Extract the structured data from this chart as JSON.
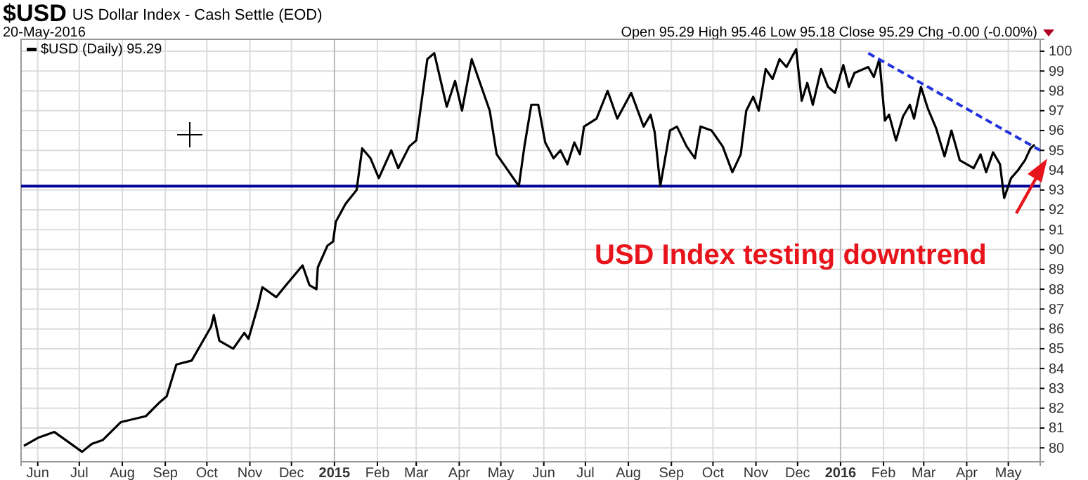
{
  "chart_data": {
    "type": "line",
    "title": "$USD",
    "subtitle": "US Dollar Index - Cash Settle (EOD)",
    "annotations": [
      "20-May-2016",
      "Open 95.29  High 95.46  Low 95.18  Close 95.29  Chg -0.00 (-0.00%)",
      "USD Index testing downtrend"
    ],
    "xlim": [
      "2014-05-20",
      "2016-05-24"
    ],
    "ylim": [
      79.3,
      100.6
    ],
    "yticks": [
      80,
      81,
      82,
      83,
      84,
      85,
      86,
      87,
      88,
      89,
      90,
      91,
      92,
      93,
      94,
      95,
      96,
      97,
      98,
      99,
      100
    ],
    "xticks": [
      {
        "value": "2014-06-01",
        "label": "Jun"
      },
      {
        "value": "2014-07-01",
        "label": "Jul"
      },
      {
        "value": "2014-08-01",
        "label": "Aug"
      },
      {
        "value": "2014-09-01",
        "label": "Sep"
      },
      {
        "value": "2014-10-01",
        "label": "Oct"
      },
      {
        "value": "2014-11-01",
        "label": "Nov"
      },
      {
        "value": "2014-12-01",
        "label": "Dec"
      },
      {
        "value": "2015-01-01",
        "label": "2015"
      },
      {
        "value": "2015-02-01",
        "label": "Feb"
      },
      {
        "value": "2015-03-01",
        "label": "Mar"
      },
      {
        "value": "2015-04-01",
        "label": "Apr"
      },
      {
        "value": "2015-05-01",
        "label": "May"
      },
      {
        "value": "2015-06-01",
        "label": "Jun"
      },
      {
        "value": "2015-07-01",
        "label": "Jul"
      },
      {
        "value": "2015-08-01",
        "label": "Aug"
      },
      {
        "value": "2015-09-01",
        "label": "Sep"
      },
      {
        "value": "2015-10-01",
        "label": "Oct"
      },
      {
        "value": "2015-11-01",
        "label": "Nov"
      },
      {
        "value": "2015-12-01",
        "label": "Dec"
      },
      {
        "value": "2016-01-01",
        "label": "2016"
      },
      {
        "value": "2016-02-01",
        "label": "Feb"
      },
      {
        "value": "2016-03-01",
        "label": "Mar"
      },
      {
        "value": "2016-04-01",
        "label": "Apr"
      },
      {
        "value": "2016-05-01",
        "label": "May"
      }
    ],
    "grid": true,
    "legend": "top left",
    "ref_lines": [
      {
        "axis": "y",
        "value": 93.2,
        "color": "#000099"
      }
    ],
    "series": [
      {
        "name": "$USD (Daily) 95.29",
        "color": "#000000",
        "line_style": "solid",
        "x": [
          "2014-05-22",
          "2014-06-01",
          "2014-06-13",
          "2014-06-21",
          "2014-07-03",
          "2014-07-10",
          "2014-07-18",
          "2014-07-31",
          "2014-08-18",
          "2014-08-28",
          "2014-09-02",
          "2014-09-09",
          "2014-09-20",
          "2014-10-04",
          "2014-10-06",
          "2014-10-10",
          "2014-10-20",
          "2014-10-28",
          "2014-10-31",
          "2014-11-07",
          "2014-11-10",
          "2014-11-20",
          "2014-11-27",
          "2014-12-09",
          "2014-12-14",
          "2014-12-19",
          "2014-12-20",
          "2014-12-27",
          "2014-12-31",
          "2015-01-02",
          "2015-01-09",
          "2015-01-17",
          "2015-01-21",
          "2015-01-27",
          "2015-02-02",
          "2015-02-11",
          "2015-02-16",
          "2015-02-24",
          "2015-03-01",
          "2015-03-09",
          "2015-03-14",
          "2015-03-23",
          "2015-03-29",
          "2015-04-03",
          "2015-04-10",
          "2015-04-18",
          "2015-04-23",
          "2015-04-28",
          "2015-05-05",
          "2015-05-14",
          "2015-05-18",
          "2015-05-23",
          "2015-05-28",
          "2015-06-02",
          "2015-06-08",
          "2015-06-13",
          "2015-06-18",
          "2015-06-23",
          "2015-06-27",
          "2015-06-30",
          "2015-07-09",
          "2015-07-17",
          "2015-07-24",
          "2015-08-03",
          "2015-08-12",
          "2015-08-17",
          "2015-08-20",
          "2015-08-24",
          "2015-08-31",
          "2015-09-05",
          "2015-09-12",
          "2015-09-18",
          "2015-09-22",
          "2015-09-30",
          "2015-10-08",
          "2015-10-15",
          "2015-10-21",
          "2015-10-25",
          "2015-10-30",
          "2015-11-03",
          "2015-11-08",
          "2015-11-13",
          "2015-11-18",
          "2015-11-23",
          "2015-11-30",
          "2015-12-04",
          "2015-12-08",
          "2015-12-12",
          "2015-12-18",
          "2015-12-23",
          "2015-12-28",
          "2016-01-03",
          "2016-01-07",
          "2016-01-11",
          "2016-01-21",
          "2016-01-25",
          "2016-01-29",
          "2016-02-02",
          "2016-02-05",
          "2016-02-10",
          "2016-02-15",
          "2016-02-20",
          "2016-02-23",
          "2016-02-28",
          "2016-03-04",
          "2016-03-10",
          "2016-03-16",
          "2016-03-21",
          "2016-03-27",
          "2016-04-06",
          "2016-04-11",
          "2016-04-15",
          "2016-04-20",
          "2016-04-25",
          "2016-04-28",
          "2016-05-03",
          "2016-05-08",
          "2016-05-13",
          "2016-05-17",
          "2016-05-20"
        ],
        "values": [
          80.1,
          80.5,
          80.8,
          80.4,
          79.8,
          80.2,
          80.4,
          81.3,
          81.6,
          82.3,
          82.6,
          84.2,
          84.4,
          86.1,
          86.7,
          85.4,
          85.0,
          85.8,
          85.5,
          87.2,
          88.1,
          87.6,
          88.2,
          89.2,
          88.2,
          88.0,
          89.1,
          90.2,
          90.4,
          91.4,
          92.3,
          93.0,
          95.1,
          94.6,
          93.6,
          95.0,
          94.1,
          95.2,
          95.5,
          99.6,
          99.9,
          97.2,
          98.5,
          97.0,
          99.6,
          98.0,
          97.0,
          94.8,
          94.1,
          93.2,
          95.2,
          97.3,
          97.3,
          95.4,
          94.6,
          95.0,
          94.3,
          95.4,
          94.8,
          96.2,
          96.6,
          98.0,
          96.6,
          97.9,
          96.2,
          96.8,
          95.9,
          93.2,
          96.0,
          96.2,
          95.2,
          94.6,
          96.2,
          96.0,
          95.2,
          93.9,
          94.8,
          97.0,
          97.7,
          97.0,
          99.1,
          98.6,
          99.6,
          99.2,
          100.1,
          97.5,
          98.4,
          97.3,
          99.1,
          98.2,
          97.9,
          99.3,
          98.2,
          98.9,
          99.2,
          98.7,
          99.6,
          96.5,
          96.8,
          95.5,
          96.7,
          97.3,
          96.6,
          98.2,
          97.1,
          96.1,
          94.7,
          96.0,
          94.5,
          94.1,
          94.8,
          93.9,
          94.9,
          94.3,
          92.6,
          93.6,
          94.0,
          94.5,
          95.1,
          95.29
        ]
      },
      {
        "type": "line",
        "color": "#2233dd",
        "line_style": "dashed",
        "x": [
          "2016-01-21",
          "2016-05-24"
        ],
        "values": [
          99.9,
          95.0
        ]
      }
    ]
  }
}
